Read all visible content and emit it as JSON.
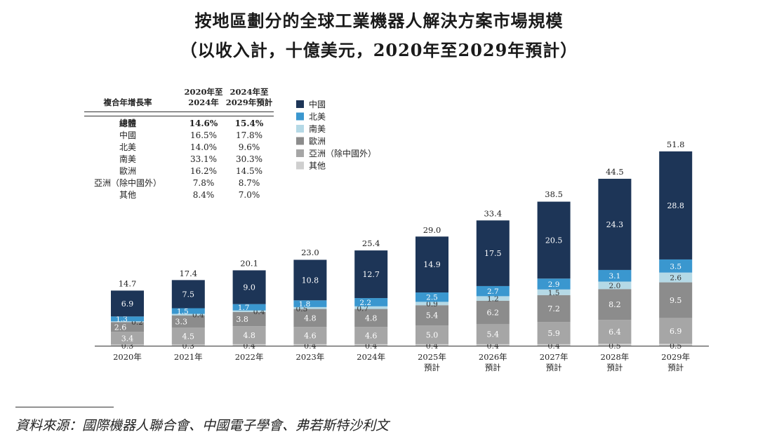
{
  "title": "按地區劃分的全球工業機器人解決方案市場規模",
  "subtitle": "（以收入計，十億美元，2020年至2029年預計）",
  "source": "資料來源：國際機器人聯合會、中國電子學會、弗若斯特沙利文",
  "colors": {
    "中國": "#1d3557",
    "北美": "#3a97cf",
    "南美": "#b5d9e6",
    "歐洲": "#8c8c8c",
    "亞洲（除中國外）": "#a6a6a6",
    "其他": "#cfcfcf"
  },
  "cagr_table": {
    "header_label": "複合年增長率",
    "col1": [
      "2020年至",
      "2024年"
    ],
    "col2": [
      "2024年至",
      "2029年預計"
    ],
    "rows": [
      {
        "label": "總體",
        "v1": "14.6%",
        "v2": "15.4%",
        "bold": true
      },
      {
        "label": "中國",
        "v1": "16.5%",
        "v2": "17.8%"
      },
      {
        "label": "北美",
        "v1": "14.0%",
        "v2": "9.6%"
      },
      {
        "label": "南美",
        "v1": "33.1%",
        "v2": "30.3%"
      },
      {
        "label": "歐洲",
        "v1": "16.2%",
        "v2": "14.5%"
      },
      {
        "label": "亞洲（除中國外）",
        "v1": "7.8%",
        "v2": "8.7%"
      },
      {
        "label": "其他",
        "v1": "8.4%",
        "v2": "7.0%"
      }
    ]
  },
  "chart_data": {
    "type": "bar",
    "stacked": true,
    "title": "按地區劃分的全球工業機器人解決方案市場規模",
    "ylabel": "十億美元",
    "categories": [
      [
        "2020年"
      ],
      [
        "2021年"
      ],
      [
        "2022年"
      ],
      [
        "2023年"
      ],
      [
        "2024年"
      ],
      [
        "2025年",
        "預計"
      ],
      [
        "2026年",
        "預計"
      ],
      [
        "2027年",
        "預計"
      ],
      [
        "2028年",
        "預計"
      ],
      [
        "2029年",
        "預計"
      ]
    ],
    "totals": [
      14.7,
      17.4,
      20.1,
      23.0,
      25.4,
      29.0,
      33.4,
      38.5,
      44.5,
      51.8
    ],
    "series": [
      {
        "name": "其他",
        "values": [
          0.3,
          0.3,
          0.4,
          0.4,
          0.4,
          0.4,
          0.4,
          0.4,
          0.5,
          0.5
        ]
      },
      {
        "name": "亞洲（除中國外）",
        "values": [
          3.4,
          4.5,
          4.8,
          4.6,
          4.6,
          5.0,
          5.4,
          5.9,
          6.4,
          6.9
        ]
      },
      {
        "name": "歐洲",
        "values": [
          2.6,
          3.3,
          3.8,
          4.8,
          4.8,
          5.4,
          6.2,
          7.2,
          8.2,
          9.5
        ]
      },
      {
        "name": "南美",
        "values": [
          0.2,
          0.4,
          0.4,
          0.5,
          0.7,
          0.9,
          1.2,
          1.5,
          2.0,
          2.6
        ]
      },
      {
        "name": "北美",
        "values": [
          1.3,
          1.5,
          1.7,
          1.8,
          2.2,
          2.5,
          2.7,
          2.9,
          3.1,
          3.5
        ]
      },
      {
        "name": "中國",
        "values": [
          6.9,
          7.5,
          9.0,
          10.8,
          12.7,
          14.9,
          17.5,
          20.5,
          24.3,
          28.8
        ]
      }
    ],
    "legend": [
      "中國",
      "北美",
      "南美",
      "歐洲",
      "亞洲（除中國外）",
      "其他"
    ],
    "legend_position": "top-left, beside table"
  }
}
